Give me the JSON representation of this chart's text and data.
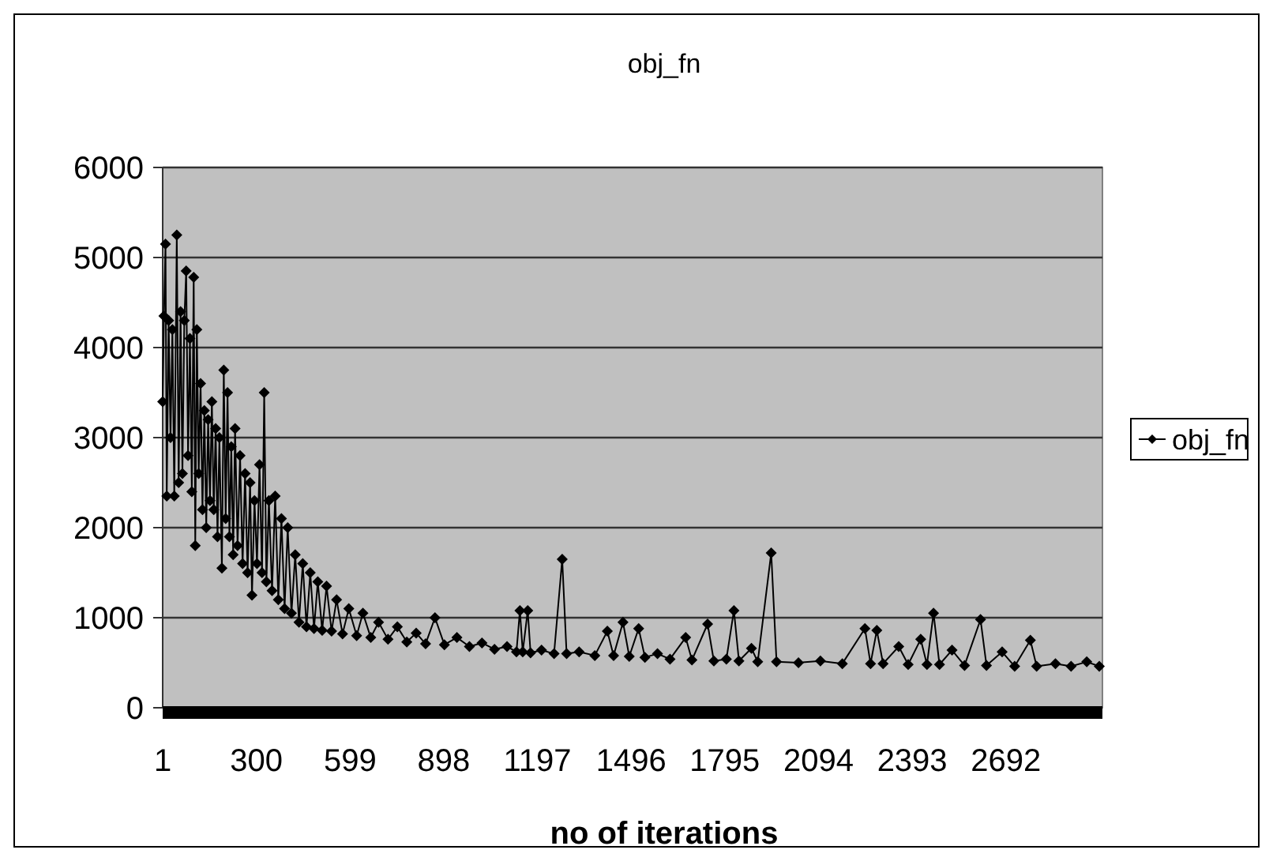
{
  "chart_data": {
    "type": "line",
    "title": "obj_fn",
    "xlabel": "no of iterations",
    "xlim": [
      1,
      3000
    ],
    "xticks": [
      1,
      300,
      599,
      898,
      1197,
      1496,
      1795,
      2094,
      2393,
      2692
    ],
    "ylim": [
      0,
      6000
    ],
    "yticks": [
      0,
      1000,
      2000,
      3000,
      4000,
      5000,
      6000
    ],
    "grid": "y",
    "legend": "right",
    "marker": "diamond",
    "line_style": "solid",
    "series": [
      {
        "name": "obj_fn",
        "color": "#000000",
        "x": [
          1,
          5,
          10,
          14,
          20,
          26,
          32,
          38,
          46,
          52,
          58,
          64,
          70,
          76,
          82,
          88,
          94,
          100,
          105,
          110,
          116,
          122,
          128,
          134,
          140,
          146,
          152,
          158,
          164,
          170,
          176,
          182,
          190,
          196,
          202,
          208,
          214,
          220,
          226,
          232,
          240,
          248,
          256,
          264,
          272,
          280,
          286,
          294,
          302,
          310,
          318,
          325,
          332,
          340,
          350,
          360,
          370,
          380,
          390,
          400,
          412,
          424,
          436,
          448,
          460,
          472,
          484,
          496,
          510,
          524,
          540,
          556,
          575,
          595,
          620,
          640,
          665,
          690,
          720,
          750,
          780,
          810,
          840,
          870,
          900,
          940,
          980,
          1020,
          1060,
          1100,
          1130,
          1141,
          1150,
          1166,
          1175,
          1210,
          1250,
          1276,
          1290,
          1330,
          1380,
          1420,
          1440,
          1470,
          1490,
          1520,
          1540,
          1580,
          1620,
          1670,
          1690,
          1740,
          1760,
          1800,
          1824,
          1840,
          1880,
          1900,
          1943,
          1960,
          2030,
          2100,
          2170,
          2242,
          2260,
          2280,
          2300,
          2350,
          2380,
          2420,
          2440,
          2461,
          2480,
          2520,
          2560,
          2611,
          2630,
          2680,
          2720,
          2770,
          2790,
          2850,
          2900,
          2950,
          2990
        ],
        "values": [
          3400,
          4350,
          5150,
          2350,
          4300,
          3000,
          4200,
          2350,
          5250,
          2500,
          4400,
          2600,
          4300,
          4850,
          2800,
          4100,
          2400,
          4780,
          1800,
          4200,
          2600,
          3600,
          2200,
          3300,
          2000,
          3200,
          2300,
          3400,
          2200,
          3100,
          1900,
          3000,
          1550,
          3750,
          2100,
          3500,
          1900,
          2900,
          1700,
          3100,
          1800,
          2800,
          1600,
          2600,
          1500,
          2500,
          1250,
          2300,
          1600,
          2700,
          1500,
          3500,
          1400,
          2300,
          1300,
          2350,
          1200,
          2100,
          1100,
          2000,
          1050,
          1700,
          950,
          1600,
          900,
          1500,
          880,
          1400,
          860,
          1350,
          850,
          1200,
          820,
          1100,
          800,
          1050,
          780,
          950,
          760,
          900,
          730,
          830,
          710,
          1000,
          700,
          780,
          680,
          720,
          650,
          680,
          620,
          1080,
          620,
          1080,
          610,
          640,
          600,
          1650,
          600,
          620,
          580,
          850,
          580,
          950,
          570,
          880,
          560,
          600,
          540,
          780,
          530,
          930,
          520,
          540,
          1080,
          520,
          660,
          510,
          1720,
          510,
          500,
          520,
          490,
          880,
          490,
          860,
          490,
          680,
          480,
          760,
          480,
          1050,
          480,
          640,
          470,
          980,
          470,
          620,
          460,
          750,
          460,
          490,
          460,
          510,
          460
        ]
      }
    ]
  }
}
